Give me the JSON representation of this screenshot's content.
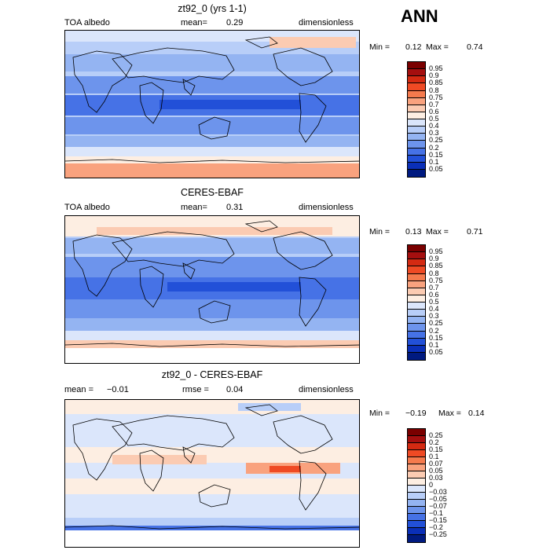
{
  "season": "ANN",
  "panels": [
    {
      "title": "zt92_0 (yrs 1-1)",
      "left_label": "TOA albedo",
      "mean_label": "mean=",
      "mean_value": "0.29",
      "units": "dimensionless",
      "min_label": "Min =",
      "min_value": "0.12",
      "max_label": "Max =",
      "max_value": "0.74",
      "colorbar": {
        "labels": [
          "0.95",
          "0.9",
          "0.85",
          "0.8",
          "0.75",
          "0.7",
          "0.6",
          "0.5",
          "0.4",
          "0.3",
          "0.25",
          "0.2",
          "0.15",
          "0.1",
          "0.05"
        ],
        "colors": [
          "#7a0000",
          "#a50f0f",
          "#d42a12",
          "#ef4a24",
          "#f57a4d",
          "#f9a27e",
          "#fbcbb2",
          "#fdeee2",
          "#dbe6fb",
          "#b8cef8",
          "#94b4f2",
          "#6d94ec",
          "#4672e6",
          "#2250d8",
          "#0a2fb8",
          "#001a80"
        ]
      }
    },
    {
      "title": "CERES-EBAF",
      "left_label": "TOA albedo",
      "mean_label": "mean=",
      "mean_value": "0.31",
      "units": "dimensionless",
      "min_label": "Min =",
      "min_value": "0.13",
      "max_label": "Max =",
      "max_value": "0.71",
      "colorbar": {
        "labels": [
          "0.95",
          "0.9",
          "0.85",
          "0.8",
          "0.75",
          "0.7",
          "0.6",
          "0.5",
          "0.4",
          "0.3",
          "0.25",
          "0.2",
          "0.15",
          "0.1",
          "0.05"
        ],
        "colors": [
          "#7a0000",
          "#a50f0f",
          "#d42a12",
          "#ef4a24",
          "#f57a4d",
          "#f9a27e",
          "#fbcbb2",
          "#fdeee2",
          "#dbe6fb",
          "#b8cef8",
          "#94b4f2",
          "#6d94ec",
          "#4672e6",
          "#2250d8",
          "#0a2fb8",
          "#001a80"
        ]
      }
    },
    {
      "title": "zt92_0 - CERES-EBAF",
      "mean_label": "mean =",
      "mean_value": "−0.01",
      "rmse_label": "rmse =",
      "rmse_value": "0.04",
      "units": "dimensionless",
      "min_label": "Min =",
      "min_value": "−0.19",
      "max_label": "Max =",
      "max_value": "0.14",
      "colorbar": {
        "labels": [
          "0.25",
          "0.2",
          "0.15",
          "0.1",
          "0.07",
          "0.05",
          "0.03",
          "0",
          "−0.03",
          "−0.05",
          "−0.07",
          "−0.1",
          "−0.15",
          "−0.2",
          "−0.25"
        ],
        "colors": [
          "#7a0000",
          "#a50f0f",
          "#d42a12",
          "#ef4a24",
          "#f57a4d",
          "#f9a27e",
          "#fbcbb2",
          "#fdeee2",
          "#dbe6fb",
          "#b8cef8",
          "#94b4f2",
          "#6d94ec",
          "#4672e6",
          "#2250d8",
          "#0a2fb8",
          "#001a80"
        ]
      }
    }
  ]
}
